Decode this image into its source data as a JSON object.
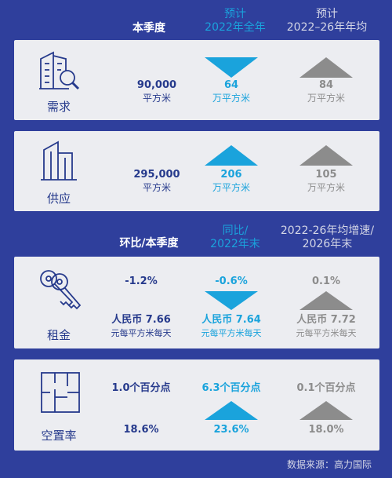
{
  "header1": {
    "col1": "本季度",
    "col2_line1": "预计",
    "col2_line2": "2022年全年",
    "col3_line1": "预计",
    "col3_line2": "2022–26年年均"
  },
  "demand": {
    "label": "需求",
    "col1_value": "90,000",
    "col1_unit": "平方米",
    "col2_value": "64",
    "col2_unit": "万平方米",
    "col3_value": "84",
    "col3_unit": "万平方米"
  },
  "supply": {
    "label": "供应",
    "col1_value": "295,000",
    "col1_unit": "平方米",
    "col2_value": "206",
    "col2_unit": "万平方米",
    "col3_value": "105",
    "col3_unit": "万平方米"
  },
  "header2": {
    "col1": "环比/本季度",
    "col2_line1": "同比/",
    "col2_line2": "2022年末",
    "col3_line1": "2022-26年均增速/",
    "col3_line2": "2026年末"
  },
  "rent": {
    "label": "租金",
    "col1_pct": "-1.2%",
    "col1_value": "人民币 7.66",
    "col1_unit": "元每平方米每天",
    "col2_pct": "-0.6%",
    "col2_value": "人民币 7.64",
    "col2_unit": "元每平方米每天",
    "col3_pct": "0.1%",
    "col3_value": "人民币 7.72",
    "col3_unit": "元每平方米每天"
  },
  "vacancy": {
    "label": "空置率",
    "col1_change": "1.0个百分点",
    "col1_value": "18.6%",
    "col2_change": "6.3个百分点",
    "col2_value": "23.6%",
    "col3_change": "0.1个百分点",
    "col3_value": "18.0%"
  },
  "source": "数据来源：高力国际",
  "colors": {
    "background": "#2f3f9c",
    "card": "#ecedf1",
    "navy": "#263a8c",
    "blue": "#1aa3dc",
    "gray": "#8c8c8c"
  }
}
